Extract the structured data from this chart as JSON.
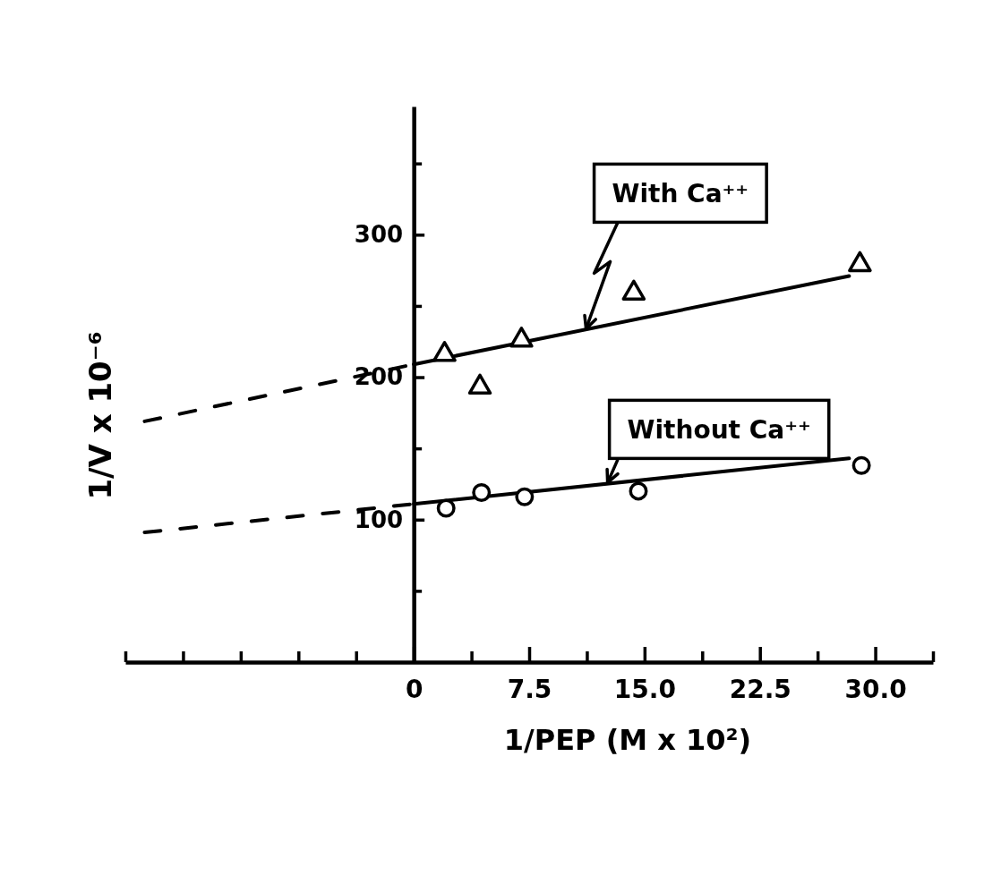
{
  "chart_data": {
    "type": "scatter",
    "xlabel": "1/PEP (M x 10²)",
    "ylabel": "1/V x 10⁻⁶",
    "xlim": [
      -18.75,
      33.75
    ],
    "xticks": [
      {
        "value": -18.75,
        "label": null
      },
      {
        "value": -15,
        "label": null
      },
      {
        "value": -11.25,
        "label": null
      },
      {
        "value": -7.5,
        "label": null
      },
      {
        "value": -3.75,
        "label": null
      },
      0,
      {
        "value": 3.75,
        "label": null
      },
      7.5,
      {
        "value": 11.25,
        "label": null
      },
      {
        "value": 15,
        "label": "15.0"
      },
      {
        "value": 18.75,
        "label": null
      },
      22.5,
      {
        "value": 26.25,
        "label": null
      },
      {
        "value": 30,
        "label": "30.0"
      },
      {
        "value": 33.75,
        "label": null
      }
    ],
    "ylim": [
      0,
      390
    ],
    "yticks": [
      {
        "value": 50,
        "label": null
      },
      100,
      {
        "value": 150,
        "label": null
      },
      200,
      {
        "value": 250,
        "label": null
      },
      300,
      {
        "value": 350,
        "label": null
      }
    ],
    "series": [
      {
        "type": "line",
        "color": "#000000",
        "x": [
          0,
          28.3
        ],
        "values": [
          209,
          271
        ],
        "line_style": "solid"
      },
      {
        "type": "line",
        "color": "#000000",
        "x": [
          -17.5,
          0
        ],
        "values": [
          169,
          209
        ],
        "line_style": "dashed"
      },
      {
        "type": "line",
        "color": "#000000",
        "x": [
          0,
          28.3
        ],
        "values": [
          111,
          143
        ],
        "line_style": "solid"
      },
      {
        "type": "line",
        "color": "#000000",
        "x": [
          -17.5,
          0
        ],
        "values": [
          91,
          111
        ],
        "line_style": "dashed"
      },
      {
        "type": "scatter",
        "color": "#000000",
        "marker": "triangle",
        "x": [
          2.0,
          4.3,
          7.0,
          14.3,
          29.0
        ],
        "values": [
          216,
          193,
          226,
          259,
          279
        ]
      },
      {
        "type": "scatter",
        "color": "#000000",
        "marker": "circle",
        "x": [
          2.1,
          4.4,
          7.2,
          14.6,
          29.1
        ],
        "values": [
          108,
          119,
          116,
          120,
          138
        ]
      }
    ],
    "annotations": [
      {
        "text": "With Ca⁺⁺",
        "x": 11.2,
        "y": 234
      },
      {
        "text": "Without Ca⁺⁺",
        "x": 12.6,
        "y": 126
      }
    ]
  }
}
